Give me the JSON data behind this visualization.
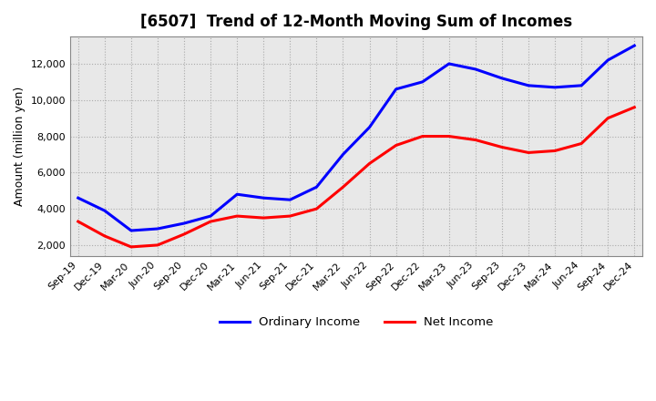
{
  "title": "[6507]  Trend of 12-Month Moving Sum of Incomes",
  "ylabel": "Amount (million yen)",
  "line_colors": [
    "#0000FF",
    "#FF0000"
  ],
  "legend_labels": [
    "Ordinary Income",
    "Net Income"
  ],
  "x_labels": [
    "Sep-19",
    "Dec-19",
    "Mar-20",
    "Jun-20",
    "Sep-20",
    "Dec-20",
    "Mar-21",
    "Jun-21",
    "Sep-21",
    "Dec-21",
    "Mar-22",
    "Jun-22",
    "Sep-22",
    "Dec-22",
    "Mar-23",
    "Jun-23",
    "Sep-23",
    "Dec-23",
    "Mar-24",
    "Jun-24",
    "Sep-24",
    "Dec-24"
  ],
  "ordinary_income": [
    4600,
    3900,
    2800,
    2900,
    3200,
    3600,
    4800,
    4600,
    4500,
    5200,
    7000,
    8500,
    10600,
    11000,
    12000,
    11700,
    11200,
    10800,
    10700,
    10800,
    12200,
    13000
  ],
  "net_income": [
    3300,
    2500,
    1900,
    2000,
    2600,
    3300,
    3600,
    3500,
    3600,
    4000,
    5200,
    6500,
    7500,
    8000,
    8000,
    7800,
    7400,
    7100,
    7200,
    7600,
    9000,
    9600
  ],
  "ylim": [
    1400,
    13500
  ],
  "yticks": [
    2000,
    4000,
    6000,
    8000,
    10000,
    12000
  ],
  "plot_bg_color": "#e8e8e8",
  "background_color": "#ffffff",
  "grid_color": "#aaaaaa",
  "title_fontsize": 12,
  "label_fontsize": 9,
  "tick_fontsize": 8
}
